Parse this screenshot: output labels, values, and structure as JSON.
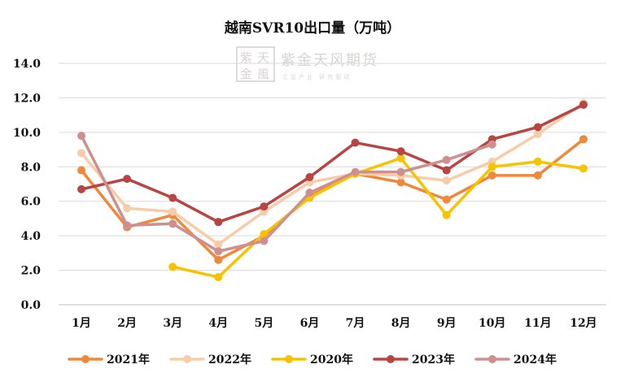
{
  "chart_data": {
    "type": "line",
    "title": "越南SVR10出口量（万吨）",
    "categories": [
      "1月",
      "2月",
      "3月",
      "4月",
      "5月",
      "6月",
      "7月",
      "8月",
      "9月",
      "10月",
      "11月",
      "12月"
    ],
    "ylim": [
      0,
      14
    ],
    "yticks": [
      0,
      2,
      4,
      6,
      8,
      10,
      12,
      14
    ],
    "ytick_labels": [
      "0.0",
      "2.0",
      "4.0",
      "6.0",
      "8.0",
      "10.0",
      "12.0",
      "14.0"
    ],
    "grid": "horizontal",
    "legend_position": "bottom",
    "series": [
      {
        "name": "2021年",
        "color": "#f0883a",
        "values": [
          7.8,
          4.5,
          5.2,
          2.6,
          4.0,
          6.3,
          7.6,
          7.1,
          6.1,
          7.5,
          7.5,
          9.6
        ]
      },
      {
        "name": "2022年",
        "color": "#f7cda9",
        "values": [
          8.8,
          5.6,
          5.4,
          3.5,
          5.4,
          7.1,
          7.6,
          7.5,
          7.2,
          8.3,
          9.9,
          11.7
        ]
      },
      {
        "name": "2020年",
        "color": "#f7c300",
        "values": [
          null,
          null,
          2.2,
          1.6,
          4.1,
          6.2,
          7.6,
          8.5,
          5.2,
          8.0,
          8.3,
          7.9
        ]
      },
      {
        "name": "2023年",
        "color": "#b84542",
        "values": [
          6.7,
          7.3,
          6.2,
          4.8,
          5.7,
          7.4,
          9.4,
          8.9,
          7.8,
          9.6,
          10.3,
          11.6
        ]
      },
      {
        "name": "2024年",
        "color": "#cf8f8f",
        "values": [
          9.8,
          4.6,
          4.7,
          3.1,
          3.7,
          6.5,
          7.7,
          7.7,
          8.4,
          9.3,
          null,
          null
        ]
      }
    ]
  },
  "watermark": {
    "logo_chars": [
      "紫",
      "天",
      "金",
      "風"
    ],
    "brand": "紫金天风期货",
    "slogan": "立足产业 研究驱动"
  }
}
